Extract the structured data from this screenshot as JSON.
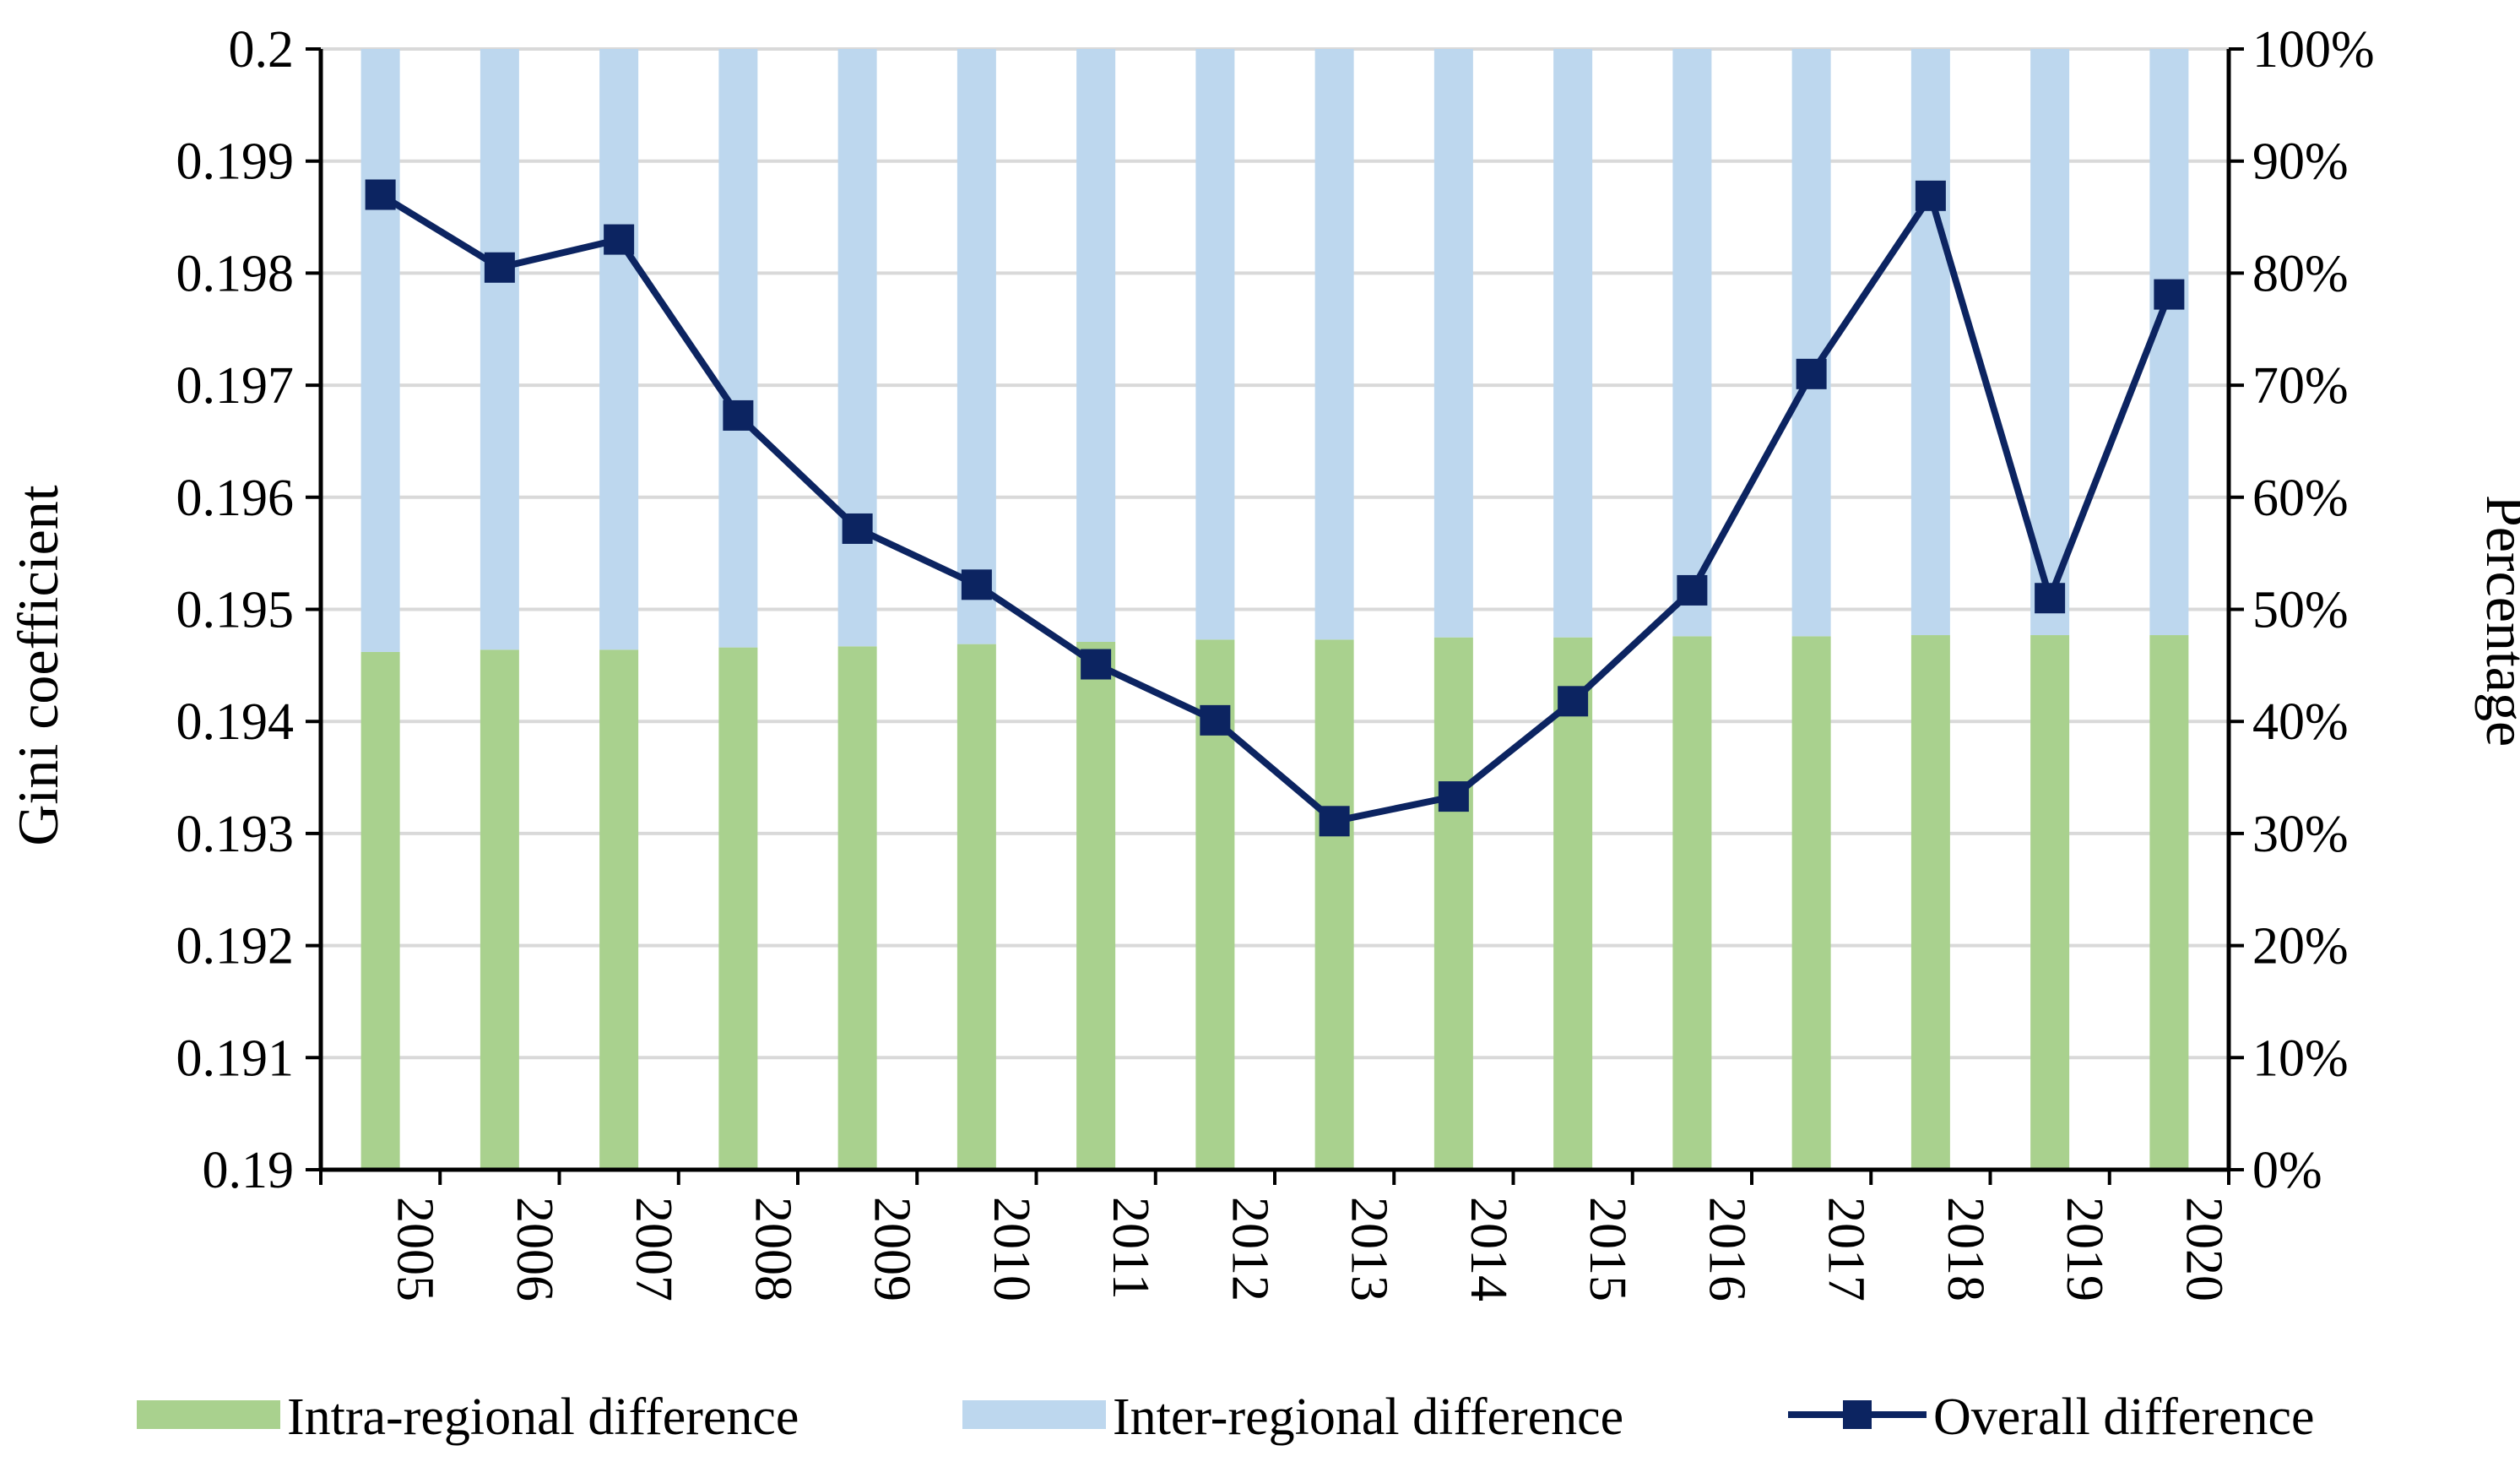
{
  "chart_data": {
    "type": "bar",
    "stacked": true,
    "percent_stacked": true,
    "categories": [
      "2005",
      "2006",
      "2007",
      "2008",
      "2009",
      "2010",
      "2011",
      "2012",
      "2013",
      "2014",
      "2015",
      "2016",
      "2017",
      "2018",
      "2019",
      "2020"
    ],
    "series": [
      {
        "name": "Intra-regional difference",
        "axis": "right",
        "kind": "bar",
        "color": "#a9d18e",
        "values": [
          46.2,
          46.4,
          46.4,
          46.6,
          46.7,
          46.9,
          47.1,
          47.3,
          47.3,
          47.5,
          47.5,
          47.6,
          47.6,
          47.7,
          47.7,
          47.7
        ]
      },
      {
        "name": "Inter-regional difference",
        "axis": "right",
        "kind": "bar",
        "color": "#bdd7ee",
        "values": [
          53.8,
          53.6,
          53.6,
          53.4,
          53.3,
          53.1,
          52.9,
          52.7,
          52.7,
          52.5,
          52.5,
          52.4,
          52.4,
          52.3,
          52.3,
          52.3
        ]
      },
      {
        "name": "Overall difference",
        "axis": "left",
        "kind": "line",
        "marker": "square",
        "color": "#0c2461",
        "values": [
          0.1987,
          0.19805,
          0.1983,
          0.19673,
          0.19572,
          0.19522,
          0.19451,
          0.19401,
          0.19311,
          0.19333,
          0.19418,
          0.19517,
          0.1971,
          0.19869,
          0.1951,
          0.19781
        ]
      }
    ],
    "ylabel": "Gini coefficient",
    "y2label": "Percentage",
    "ylim": [
      0.19,
      0.2
    ],
    "y2lim": [
      0,
      100
    ],
    "yticks": [
      "0.19",
      "0.191",
      "0.192",
      "0.193",
      "0.194",
      "0.195",
      "0.196",
      "0.197",
      "0.198",
      "0.199",
      "0.2"
    ],
    "y2ticks": [
      "0%",
      "10%",
      "20%",
      "30%",
      "40%",
      "50%",
      "60%",
      "70%",
      "80%",
      "90%",
      "100%"
    ],
    "grid": true,
    "legend_position": "bottom"
  }
}
